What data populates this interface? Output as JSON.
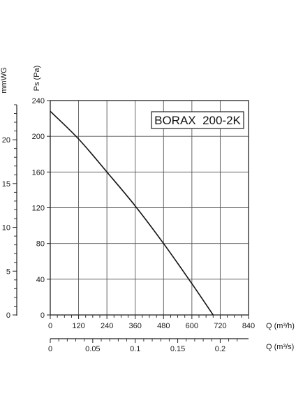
{
  "chart_data": {
    "type": "line",
    "model_label": "BORAX  200-2K",
    "x": [
      0,
      120,
      240,
      360,
      480,
      600,
      690
    ],
    "y": [
      228,
      197,
      160,
      122,
      80,
      35,
      0
    ],
    "xlim": [
      0,
      840
    ],
    "ylim": [
      0,
      240
    ],
    "x_ticks": [
      "0",
      "120",
      "240",
      "360",
      "480",
      "600",
      "720",
      "840"
    ],
    "y_ticks": [
      "0",
      "40",
      "80",
      "120",
      "160",
      "200",
      "240"
    ],
    "xlabel": "Q (m³/h)",
    "ylabel": "Ps (Pa)",
    "secondary_x": {
      "label": "Q (m³/s)",
      "ticks": [
        "0",
        "0.05",
        "0.1",
        "0.15",
        "0.2"
      ],
      "values": [
        0,
        0.05,
        0.1,
        0.15,
        0.2
      ]
    },
    "secondary_y": {
      "label": "mmWG",
      "ticks": [
        "0",
        "5",
        "10",
        "15",
        "20"
      ],
      "values": [
        0,
        5,
        10,
        15,
        20
      ]
    },
    "grid": true
  }
}
